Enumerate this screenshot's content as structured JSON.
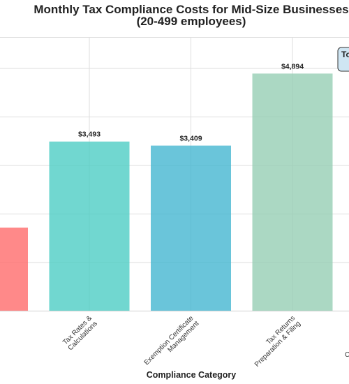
{
  "chart_data": {
    "type": "bar",
    "title": "Monthly Tax Compliance Costs for Mid-Size Businesses",
    "subtitle": "(20-499 employees)",
    "xlabel": "Compliance Category",
    "ylabel": "",
    "categories": [
      "",
      "Tax Rates &\nCalculations",
      "Exemption Certificate\nManagement",
      "Tax Returns\nPreparation & Filing",
      ""
    ],
    "values": [
      1720,
      3493,
      3409,
      4894,
      null
    ],
    "data_labels": [
      "",
      "$3,493",
      "$3,409",
      "$4,894",
      ""
    ],
    "colors": [
      "#FF6B6B",
      "#4ECDC4",
      "#45B7D1",
      "#96CEB4",
      "#FFEAA7"
    ],
    "ylim": [
      0,
      5000
    ],
    "grid": true,
    "annotation": "To",
    "partial_tick_text": "C"
  }
}
